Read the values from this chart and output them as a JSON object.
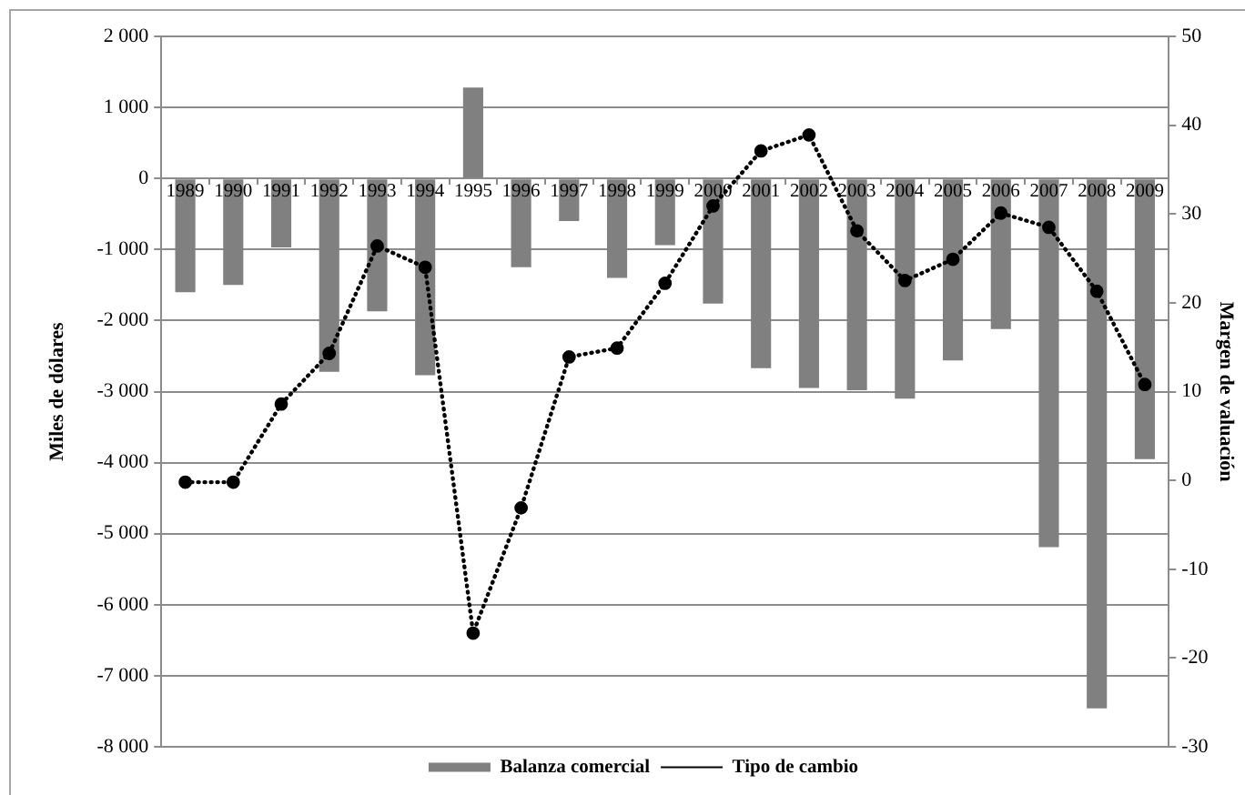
{
  "chart_data": {
    "type": "bar",
    "categories": [
      "1989",
      "1990",
      "1991",
      "1992",
      "1993",
      "1994",
      "1995",
      "1996",
      "1997",
      "1998",
      "1999",
      "2000",
      "2001",
      "2002",
      "2003",
      "2004",
      "2005",
      "2006",
      "2007",
      "2008",
      "2009"
    ],
    "series": [
      {
        "name": "Balanza comercial",
        "color": "#808080",
        "values": [
          -1600,
          -1500,
          -970,
          -2720,
          -1870,
          -2770,
          1280,
          -1250,
          -600,
          -1400,
          -940,
          -1760,
          -2670,
          -2950,
          -2980,
          -3100,
          -2560,
          -2120,
          -5190,
          -7460,
          -3950
        ]
      },
      {
        "name": "Tipo de cambio",
        "type": "line",
        "axis": "y2",
        "color": "#000000",
        "values": [
          -0.2,
          -0.2,
          8.6,
          14.3,
          26.4,
          24.0,
          -17.2,
          -3.1,
          13.9,
          14.9,
          22.2,
          30.9,
          37.1,
          38.9,
          28.1,
          22.5,
          24.9,
          30.1,
          28.5,
          21.3,
          10.8
        ]
      }
    ],
    "ylabel": "Miles de dólares",
    "y2label": "Margen de valuación",
    "ylim": [
      -8000,
      2000
    ],
    "yticks": [
      {
        "value": -8000,
        "label": "-8 000"
      },
      {
        "value": -7000,
        "label": "-7 000"
      },
      {
        "value": -6000,
        "label": "-6 000"
      },
      {
        "value": -5000,
        "label": "-5 000"
      },
      {
        "value": -4000,
        "label": "-4 000"
      },
      {
        "value": -3000,
        "label": "-3 000"
      },
      {
        "value": -2000,
        "label": "-2 000"
      },
      {
        "value": -1000,
        "label": "-1 000"
      },
      0,
      {
        "value": 1000,
        "label": "1 000"
      },
      {
        "value": 2000,
        "label": "2 000"
      }
    ],
    "y2lim": [
      -30,
      50
    ],
    "y2ticks": [
      -30,
      -20,
      -10,
      0,
      10,
      20,
      30,
      40,
      50
    ],
    "grid": "y",
    "legend": "bottom",
    "marker": "circle",
    "line_style": "dotted"
  }
}
